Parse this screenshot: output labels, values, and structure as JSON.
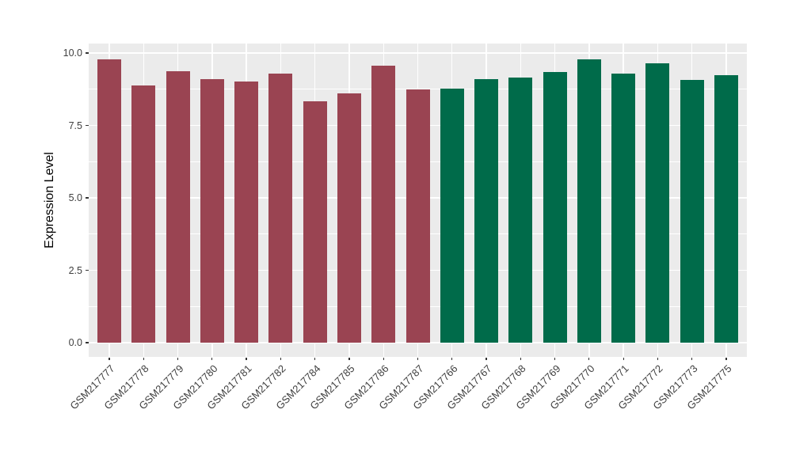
{
  "chart_data": {
    "type": "bar",
    "title": "",
    "xlabel": "",
    "ylabel": "Expression Level",
    "ylim": [
      -0.49,
      10.33
    ],
    "grid": true,
    "legend_position": "none",
    "y_major_ticks": [
      {
        "value": 0.0,
        "label": "0.0"
      },
      {
        "value": 2.5,
        "label": "2.5"
      },
      {
        "value": 5.0,
        "label": "5.0"
      },
      {
        "value": 7.5,
        "label": "7.5"
      },
      {
        "value": 10.0,
        "label": "10.0"
      }
    ],
    "y_minor_ticks": [
      1.25,
      3.75,
      6.25,
      8.75
    ],
    "categories": [
      "GSM217777",
      "GSM217778",
      "GSM217779",
      "GSM217780",
      "GSM217781",
      "GSM217782",
      "GSM217784",
      "GSM217785",
      "GSM217786",
      "GSM217787",
      "GSM217766",
      "GSM217767",
      "GSM217768",
      "GSM217769",
      "GSM217770",
      "GSM217771",
      "GSM217772",
      "GSM217773",
      "GSM217775"
    ],
    "values": [
      9.79,
      8.88,
      9.37,
      9.1,
      9.01,
      9.29,
      8.33,
      8.6,
      9.57,
      8.74,
      8.76,
      9.1,
      9.16,
      9.35,
      9.78,
      9.28,
      9.65,
      9.08,
      9.23
    ],
    "bar_colors": [
      "#9A4452",
      "#9A4452",
      "#9A4452",
      "#9A4452",
      "#9A4452",
      "#9A4452",
      "#9A4452",
      "#9A4452",
      "#9A4452",
      "#9A4452",
      "#006B4A",
      "#006B4A",
      "#006B4A",
      "#006B4A",
      "#006B4A",
      "#006B4A",
      "#006B4A",
      "#006B4A",
      "#006B4A"
    ],
    "colors": {
      "maroon_group": "#9A4452",
      "green_group": "#006B4A",
      "panel_background": "#EBEBEB",
      "gridline": "#FFFFFF",
      "axis_text": "#404040",
      "figure_background": "#FFFFFF"
    }
  }
}
